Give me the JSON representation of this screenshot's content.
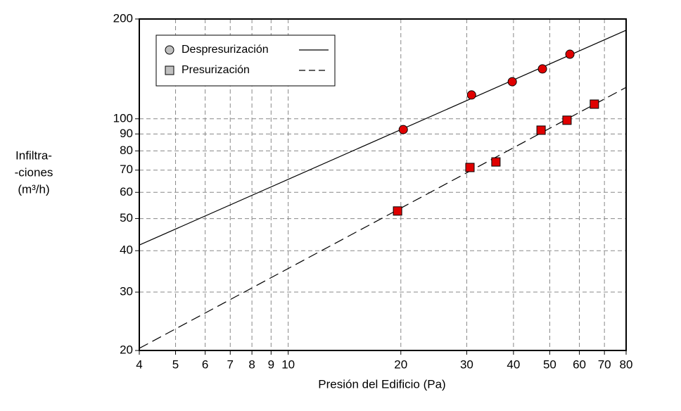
{
  "chart_data": {
    "type": "scatter",
    "x_label": "Presión del Edificio (Pa)",
    "y_label": [
      "Infiltra-",
      "-ciones",
      "(m³/h)"
    ],
    "xscale": "log",
    "yscale": "log",
    "grid": true,
    "legend": "upper left",
    "xlim": [
      4,
      80
    ],
    "ylim": [
      20,
      200
    ],
    "xticks": [
      4,
      5,
      6,
      7,
      8,
      9,
      10,
      20,
      30,
      40,
      50,
      60,
      70,
      80
    ],
    "yticks": [
      20,
      30,
      40,
      50,
      60,
      70,
      80,
      90,
      100,
      200
    ],
    "series": [
      {
        "name": "Despresurización",
        "marker": "circle",
        "color": "#e00000",
        "legend_color": "#c0c0c0",
        "line_style": "solid",
        "x": [
          20.3,
          30.9,
          39.7,
          47.8,
          56.6
        ],
        "values": [
          92.8,
          118,
          129.4,
          141.4,
          156.6
        ],
        "fit": {
          "x": [
            4,
            80
          ],
          "values": [
            41.6,
            185
          ]
        }
      },
      {
        "name": "Presurización",
        "marker": "square",
        "color": "#e00000",
        "legend_color": "#c0c0c0",
        "line_style": "dashed",
        "x": [
          19.6,
          30.6,
          35.9,
          47.4,
          55.6,
          65.8
        ],
        "values": [
          52.7,
          71.3,
          74.1,
          92.4,
          99.0,
          110.7
        ],
        "fit": {
          "x": [
            4,
            80
          ],
          "values": [
            20.3,
            124.4
          ]
        }
      }
    ]
  }
}
